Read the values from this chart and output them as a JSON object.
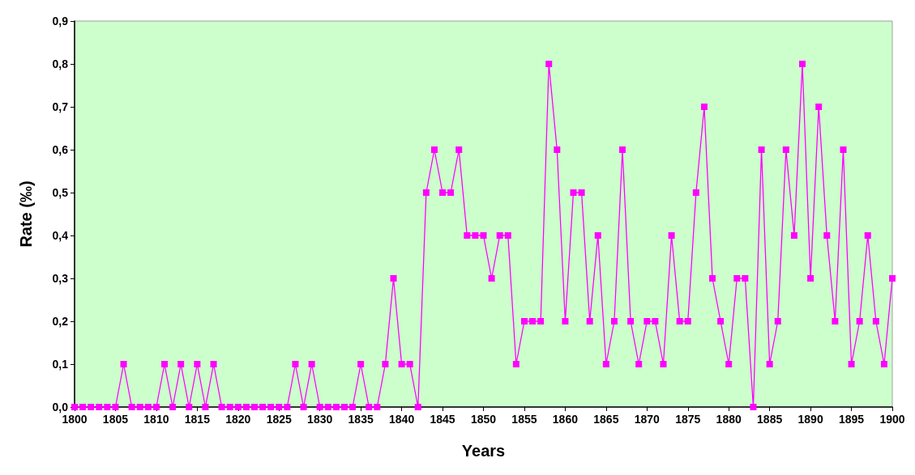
{
  "chart_data": {
    "type": "line",
    "xlabel": "Years",
    "ylabel": "Rate (‰)",
    "x": [
      1800,
      1801,
      1802,
      1803,
      1804,
      1805,
      1806,
      1807,
      1808,
      1809,
      1810,
      1811,
      1812,
      1813,
      1814,
      1815,
      1816,
      1817,
      1818,
      1819,
      1820,
      1821,
      1822,
      1823,
      1824,
      1825,
      1826,
      1827,
      1828,
      1829,
      1830,
      1831,
      1832,
      1833,
      1834,
      1835,
      1836,
      1837,
      1838,
      1839,
      1840,
      1841,
      1842,
      1843,
      1844,
      1845,
      1846,
      1847,
      1848,
      1849,
      1850,
      1851,
      1852,
      1853,
      1854,
      1855,
      1856,
      1857,
      1858,
      1859,
      1860,
      1861,
      1862,
      1863,
      1864,
      1865,
      1866,
      1867,
      1868,
      1869,
      1870,
      1871,
      1872,
      1873,
      1874,
      1875,
      1876,
      1877,
      1878,
      1879,
      1880,
      1881,
      1882,
      1883,
      1884,
      1885,
      1886,
      1887,
      1888,
      1889,
      1890,
      1891,
      1892,
      1893,
      1894,
      1895,
      1896,
      1897,
      1898,
      1899,
      1900
    ],
    "series": [
      {
        "color": "#ff00ff",
        "values": [
          0,
          0,
          0,
          0,
          0,
          0,
          0.1,
          0,
          0,
          0,
          0,
          0.1,
          0,
          0.1,
          0,
          0.1,
          0,
          0.1,
          0,
          0,
          0,
          0,
          0,
          0,
          0,
          0,
          0,
          0.1,
          0,
          0.1,
          0,
          0,
          0,
          0,
          0,
          0.1,
          0,
          0,
          0.1,
          0.3,
          0.1,
          0.1,
          0,
          0.5,
          0.6,
          0.5,
          0.5,
          0.6,
          0.4,
          0.4,
          0.4,
          0.3,
          0.4,
          0.4,
          0.1,
          0.2,
          0.2,
          0.2,
          0.8,
          0.6,
          0.2,
          0.5,
          0.5,
          0.2,
          0.4,
          0.1,
          0.2,
          0.6,
          0.2,
          0.1,
          0.2,
          0.2,
          0.1,
          0.4,
          0.2,
          0.2,
          0.5,
          0.7,
          0.3,
          0.2,
          0.1,
          0.3,
          0.3,
          0,
          0.6,
          0.1,
          0.2,
          0.6,
          0.4,
          0.8,
          0.3,
          0.7,
          0.4,
          0.2,
          0.6,
          0.1,
          0.2,
          0.4,
          0.2,
          0.1,
          0.3
        ]
      }
    ],
    "xlim": [
      1800,
      1900
    ],
    "xticks": [
      1800,
      1805,
      1810,
      1815,
      1820,
      1825,
      1830,
      1835,
      1840,
      1845,
      1850,
      1855,
      1860,
      1865,
      1870,
      1875,
      1880,
      1885,
      1890,
      1895,
      1900
    ],
    "ylim": [
      0,
      0.9
    ],
    "yticks": [
      {
        "value": 0,
        "label": "0,0"
      },
      {
        "value": 0.1,
        "label": "0,1"
      },
      {
        "value": 0.2,
        "label": "0,2"
      },
      {
        "value": 0.3,
        "label": "0,3"
      },
      {
        "value": 0.4,
        "label": "0,4"
      },
      {
        "value": 0.5,
        "label": "0,5"
      },
      {
        "value": 0.6,
        "label": "0,6"
      },
      {
        "value": 0.7,
        "label": "0,7"
      },
      {
        "value": 0.8,
        "label": "0,8"
      },
      {
        "value": 0.9,
        "label": "0,9"
      }
    ],
    "grid": false,
    "marker": "square",
    "line_style": "solid"
  }
}
